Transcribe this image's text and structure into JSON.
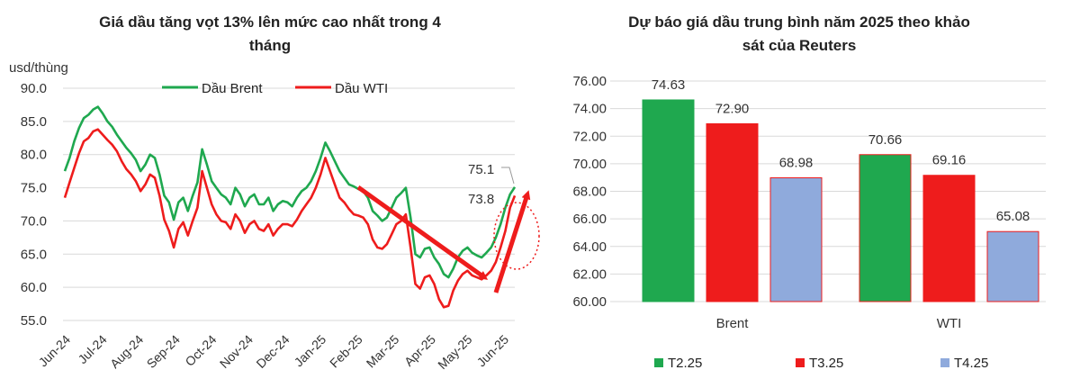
{
  "chart_data": [
    {
      "type": "line",
      "title": "Giá dầu tăng vọt 13% lên mức cao nhất trong 4 tháng",
      "title_lines": [
        "Giá dầu tăng vọt 13% lên mức cao nhất trong 4",
        "tháng"
      ],
      "ylabel": "usd/thùng",
      "ylim": [
        55,
        90
      ],
      "yticks": [
        "90.0",
        "85.0",
        "80.0",
        "75.0",
        "70.0",
        "65.0",
        "60.0",
        "55.0"
      ],
      "x_ticks": [
        "Jun-24",
        "Jul-24",
        "Aug-24",
        "Sep-24",
        "Oct-24",
        "Nov-24",
        "Dec-24",
        "Jan-25",
        "Feb-25",
        "Mar-25",
        "Apr-25",
        "May-25",
        "Jun-25"
      ],
      "grid": true,
      "legend_position": "top",
      "series": [
        {
          "name": "Dầu Brent",
          "color": "#1fa84f",
          "values": [
            77.5,
            79.5,
            82.0,
            84.0,
            85.5,
            86.0,
            86.8,
            87.2,
            86.2,
            85.0,
            84.2,
            83.0,
            82.0,
            81.0,
            80.2,
            79.2,
            77.5,
            78.5,
            80.0,
            79.5,
            77.0,
            73.8,
            72.8,
            70.2,
            72.8,
            73.5,
            71.5,
            73.8,
            75.8,
            80.8,
            78.5,
            76.0,
            75.0,
            74.0,
            73.5,
            72.5,
            75.0,
            74.0,
            72.2,
            73.5,
            74.0,
            72.5,
            72.5,
            73.5,
            71.5,
            72.5,
            73.0,
            72.8,
            72.2,
            73.5,
            74.5,
            75.0,
            76.0,
            77.5,
            79.5,
            81.8,
            80.5,
            79.0,
            77.5,
            76.5,
            75.5,
            75.2,
            74.8,
            74.5,
            73.5,
            71.5,
            70.8,
            70.0,
            70.5,
            72.0,
            73.5,
            74.2,
            75.0,
            70.5,
            65.0,
            64.5,
            65.8,
            66.0,
            64.5,
            63.5,
            62.0,
            61.5,
            62.8,
            64.5,
            65.5,
            66.0,
            65.2,
            64.8,
            64.5,
            65.2,
            66.0,
            67.5,
            69.5,
            72.0,
            74.0,
            75.1
          ]
        },
        {
          "name": "Dầu WTI",
          "color": "#ee1c1c",
          "values": [
            73.5,
            75.8,
            78.0,
            80.2,
            82.0,
            82.5,
            83.5,
            83.8,
            83.0,
            82.2,
            81.5,
            80.5,
            79.0,
            77.8,
            77.0,
            76.0,
            74.5,
            75.5,
            77.0,
            76.5,
            73.8,
            70.2,
            68.5,
            66.0,
            68.8,
            69.8,
            67.8,
            70.0,
            72.0,
            77.5,
            75.0,
            72.5,
            71.0,
            70.0,
            69.8,
            68.8,
            71.0,
            70.0,
            68.2,
            69.5,
            70.0,
            68.8,
            68.5,
            69.5,
            67.8,
            68.8,
            69.5,
            69.5,
            69.2,
            70.2,
            71.5,
            72.5,
            73.5,
            75.0,
            77.0,
            79.5,
            77.5,
            75.5,
            73.5,
            72.8,
            71.8,
            71.0,
            70.8,
            70.5,
            69.5,
            67.2,
            66.0,
            65.8,
            66.5,
            68.0,
            69.5,
            70.0,
            71.0,
            66.0,
            60.5,
            59.8,
            61.5,
            61.8,
            60.5,
            58.2,
            57.0,
            57.2,
            59.5,
            61.0,
            62.0,
            62.5,
            61.8,
            61.5,
            61.2,
            61.8,
            62.5,
            63.8,
            66.0,
            68.5,
            72.0,
            73.8
          ]
        }
      ],
      "annotations": [
        "75.1",
        "73.8"
      ]
    },
    {
      "type": "bar",
      "title": "Dự báo giá dầu trung bình năm 2025 theo khảo sát của Reuters",
      "title_lines": [
        "Dự báo giá dầu trung bình năm 2025 theo khảo",
        "sát của Reuters"
      ],
      "categories": [
        "Brent",
        "WTI"
      ],
      "ylim": [
        60,
        76
      ],
      "yticks": [
        "76.00",
        "74.00",
        "72.00",
        "70.00",
        "68.00",
        "66.00",
        "64.00",
        "62.00",
        "60.00"
      ],
      "grid": true,
      "legend_position": "bottom",
      "series": [
        {
          "name": "T2.25",
          "color": "#1fa84f",
          "values": [
            74.63,
            70.66
          ],
          "labels": [
            "74.63",
            "70.66"
          ]
        },
        {
          "name": "T3.25",
          "color": "#ee1c1c",
          "values": [
            72.9,
            69.16
          ],
          "labels": [
            "72.90",
            "69.16"
          ]
        },
        {
          "name": "T4.25",
          "color": "#8faadc",
          "values": [
            68.98,
            65.08
          ],
          "labels": [
            "68.98",
            "65.08"
          ]
        }
      ]
    }
  ]
}
